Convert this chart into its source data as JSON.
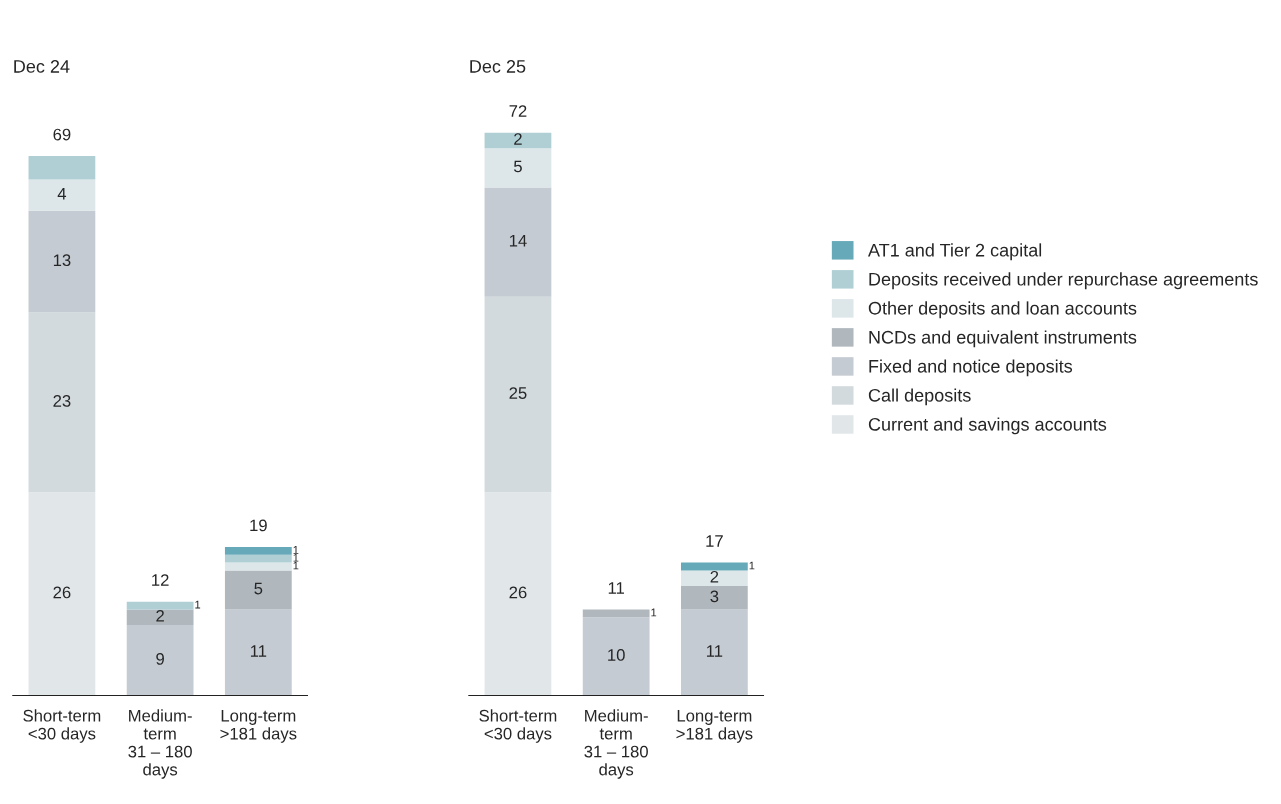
{
  "chart_data": [
    {
      "type": "bar",
      "title": "Dec 24",
      "stacked": true,
      "legend": "right",
      "grid": false,
      "categories": [
        "Short-term\n<30 days",
        "Medium-\nterm\n31 – 180\ndays",
        "Long-term\n>181 days"
      ],
      "series": [
        {
          "name": "Current and savings accounts",
          "color": "#e1e6e9",
          "values": [
            26,
            null,
            null
          ],
          "value_labels": [
            "26",
            null,
            null
          ]
        },
        {
          "name": "Call deposits",
          "color": "#d3dadd",
          "values": [
            23,
            null,
            null
          ],
          "value_labels": [
            "23",
            null,
            null
          ]
        },
        {
          "name": "Fixed and notice deposits",
          "color": "#c4cbd2",
          "values": [
            13,
            9,
            11
          ],
          "value_labels": [
            "13",
            "9",
            "11"
          ]
        },
        {
          "name": "NCDs and equivalent instruments",
          "color": "#b0b8be",
          "values": [
            null,
            2,
            5
          ],
          "value_labels": [
            null,
            "2",
            "5"
          ]
        },
        {
          "name": "Other deposits and loan accounts",
          "color": "#dde6e9",
          "values": [
            4,
            null,
            1
          ],
          "value_labels": [
            "4",
            null,
            "1"
          ]
        },
        {
          "name": "Deposits received under repurchase agreements",
          "color": "#b0cfd5",
          "values": [
            3,
            1,
            1
          ],
          "value_labels": [
            null,
            "1",
            "1"
          ]
        },
        {
          "name": "AT1 and Tier 2 capital",
          "color": "#66a9b8",
          "values": [
            null,
            null,
            1
          ],
          "value_labels": [
            null,
            null,
            "1"
          ]
        }
      ],
      "totals": [
        "69",
        "12",
        "19"
      ]
    },
    {
      "type": "bar",
      "title": "Dec 25",
      "stacked": true,
      "grid": false,
      "categories": [
        "Short-term\n<30 days",
        "Medium-\nterm\n31 – 180\ndays",
        "Long-term\n>181 days"
      ],
      "series": [
        {
          "color": "#e1e6e9",
          "values": [
            26,
            null,
            null
          ],
          "value_labels": [
            "26",
            null,
            null
          ]
        },
        {
          "color": "#d3dadd",
          "values": [
            25,
            null,
            null
          ],
          "value_labels": [
            "25",
            null,
            null
          ]
        },
        {
          "color": "#c4cbd2",
          "values": [
            14,
            10,
            11
          ],
          "value_labels": [
            "14",
            "10",
            "11"
          ]
        },
        {
          "color": "#b0b8be",
          "values": [
            null,
            1,
            3
          ],
          "value_labels": [
            null,
            "1",
            "3"
          ]
        },
        {
          "color": "#dde6e9",
          "values": [
            5,
            null,
            2
          ],
          "value_labels": [
            "5",
            null,
            "2"
          ]
        },
        {
          "color": "#b0cfd5",
          "values": [
            2,
            null,
            null
          ],
          "value_labels": [
            "2",
            null,
            null
          ]
        },
        {
          "color": "#66a9b8",
          "values": [
            null,
            null,
            1
          ],
          "value_labels": [
            null,
            null,
            "1"
          ]
        }
      ],
      "totals": [
        "72",
        "11",
        "17"
      ]
    }
  ]
}
